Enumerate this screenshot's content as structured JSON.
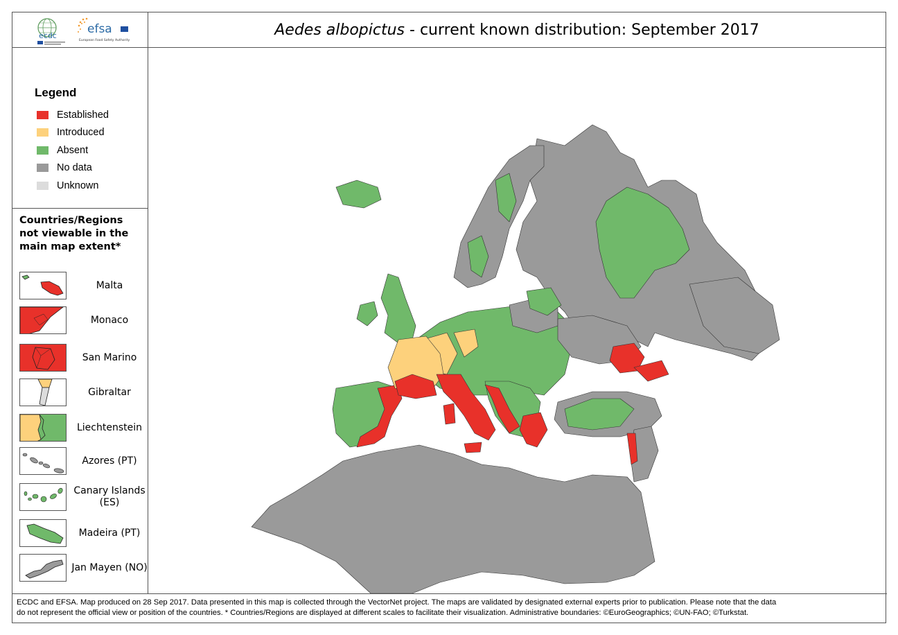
{
  "header": {
    "logos": {
      "ecdc": "ecdc",
      "efsa": "efsa",
      "efsa_subtitle": "European Food Safety Authority"
    },
    "title_species": "Aedes albopictus",
    "title_rest": " - current known distribution: September 2017"
  },
  "legend": {
    "title": "Legend",
    "items": [
      {
        "label": "Established",
        "color": "#e8312a"
      },
      {
        "label": "Introduced",
        "color": "#fdd17c"
      },
      {
        "label": "Absent",
        "color": "#70b96a"
      },
      {
        "label": "No data",
        "color": "#9a9a9a"
      },
      {
        "label": "Unknown",
        "color": "#dcdcdc"
      }
    ]
  },
  "regions": {
    "title": "Countries/Regions not viewable in the main map extent*",
    "items": [
      {
        "label": "Malta",
        "icon": "malta-icon"
      },
      {
        "label": "Monaco",
        "icon": "monaco-icon"
      },
      {
        "label": "San Marino",
        "icon": "san-marino-icon"
      },
      {
        "label": "Gibraltar",
        "icon": "gibraltar-icon"
      },
      {
        "label": "Liechtenstein",
        "icon": "liechtenstein-icon"
      },
      {
        "label": "Azores (PT)",
        "icon": "azores-icon"
      },
      {
        "label": "Canary Islands (ES)",
        "icon": "canary-islands-icon"
      },
      {
        "label": "Madeira (PT)",
        "icon": "madeira-icon"
      },
      {
        "label": "Jan Mayen (NO)",
        "icon": "jan-mayen-icon"
      }
    ]
  },
  "footer": {
    "line1": "ECDC and EFSA. Map produced on 28 Sep 2017. Data presented in this map is collected through the VectorNet project. The maps are validated by designated external experts prior to publication. Please note that the data",
    "line2": "do not represent the official view or position of the countries. * Countries/Regions are displayed at different scales to facilitate their visualization. Administrative boundaries: ©EuroGeographics; ©UN-FAO; ©Turkstat."
  }
}
